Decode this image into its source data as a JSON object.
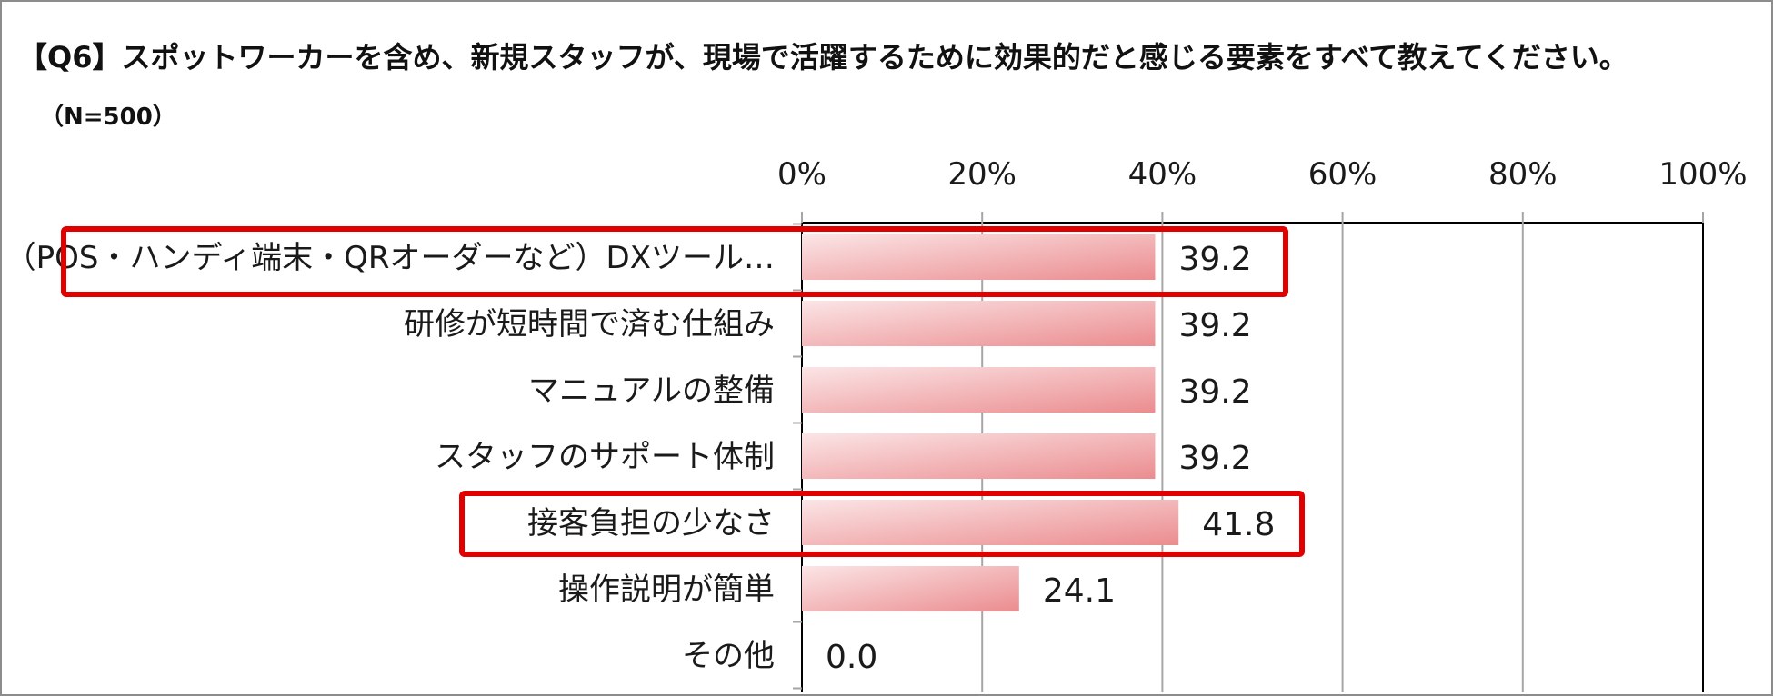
{
  "header": {
    "title": "【Q6】スポットワーカーを含め、新規スタッフが、現場で活躍するために効果的だと感じる要素をすべて教えてください。",
    "subtitle": "（N=500）"
  },
  "colors": {
    "bar_dark": "#eb8c8f",
    "bar_light": "#fbe5e6",
    "highlight_border": "#e00000",
    "gridline": "#a6a6a6",
    "axis": "#000000"
  },
  "chart_data": {
    "type": "bar",
    "orientation": "horizontal",
    "categories": [
      "（POS・ハンディ端末・QRオーダーなど）DXツール…",
      "研修が短時間で済む仕組み",
      "マニュアルの整備",
      "スタッフのサポート体制",
      "接客負担の少なさ",
      "操作説明が簡単",
      "その他"
    ],
    "values": [
      39.2,
      39.2,
      39.2,
      39.2,
      41.8,
      24.1,
      0.0
    ],
    "value_labels": [
      "39.2",
      "39.2",
      "39.2",
      "39.2",
      "41.8",
      "24.1",
      "0.0"
    ],
    "xlim": [
      0,
      100
    ],
    "ticks": [
      0,
      20,
      40,
      60,
      80,
      100
    ],
    "tick_labels": [
      "0%",
      "20%",
      "40%",
      "60%",
      "80%",
      "100%"
    ],
    "xaxis_position": "top",
    "grid": true,
    "highlighted_categories": [
      0,
      4
    ],
    "legend": "none"
  }
}
